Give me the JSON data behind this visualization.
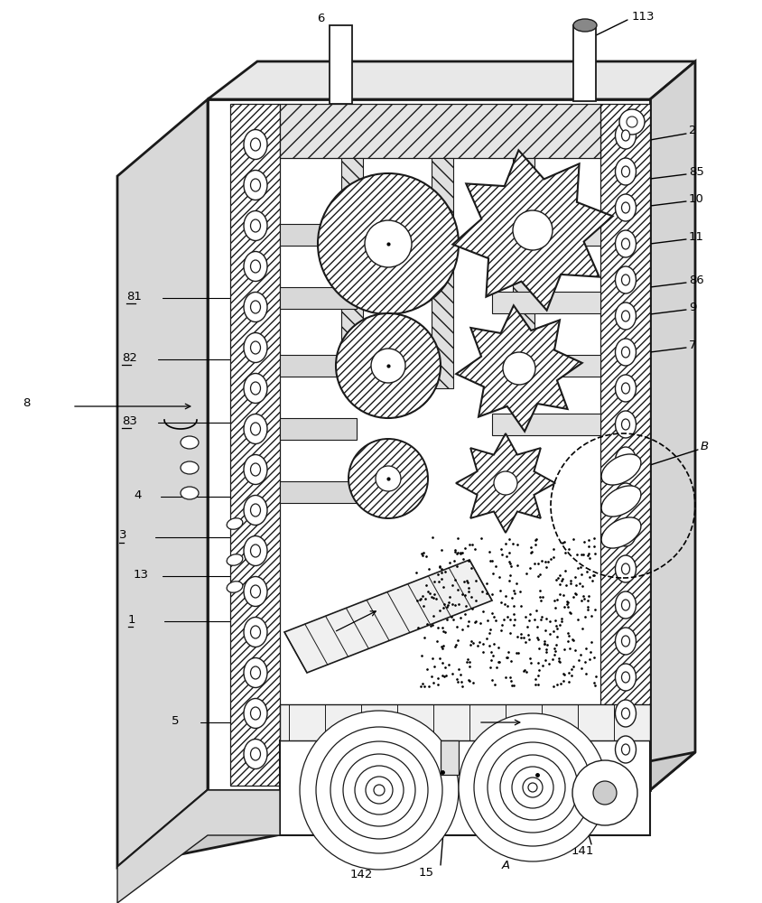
{
  "bg_color": "#ffffff",
  "lc": "#1a1a1a",
  "fig_width": 8.44,
  "fig_height": 10.0,
  "dpi": 100
}
